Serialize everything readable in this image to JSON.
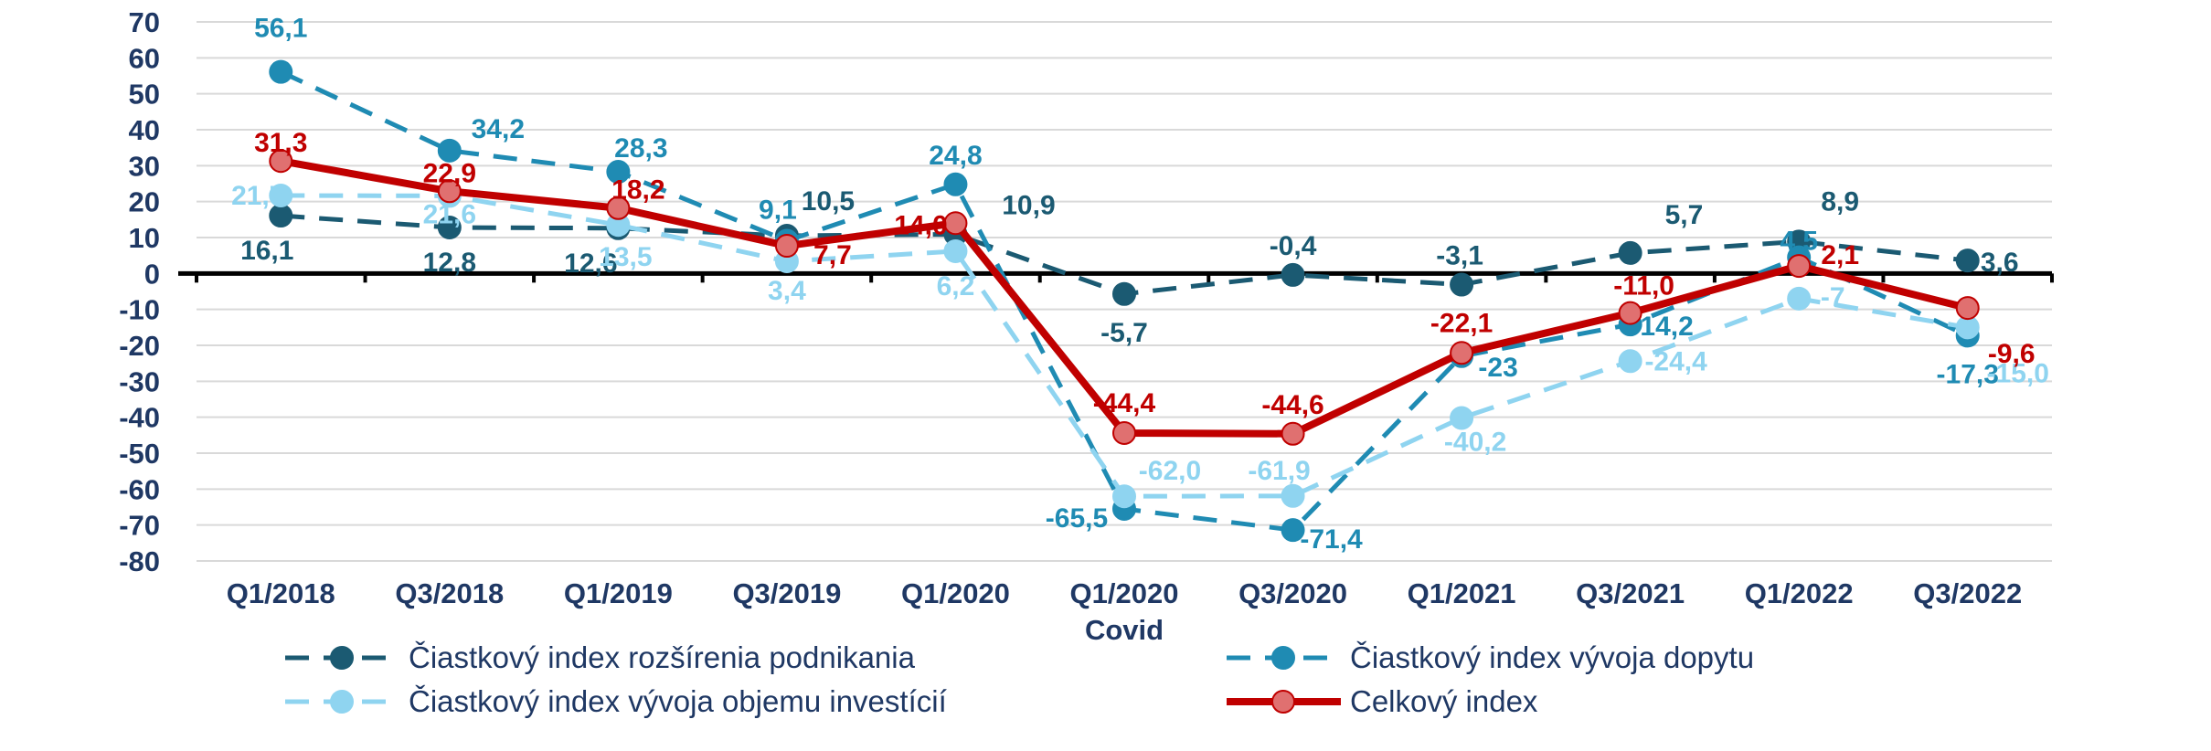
{
  "chart_data": {
    "type": "line",
    "title": "",
    "xlabel": "",
    "ylabel": "",
    "ylim": [
      -80,
      70
    ],
    "yticks": [
      70,
      60,
      50,
      40,
      30,
      20,
      10,
      0,
      -10,
      -20,
      -30,
      -40,
      -50,
      -60,
      -70,
      -80
    ],
    "grid": true,
    "legend_position": "bottom",
    "categories": [
      "Q1/2018",
      "Q3/2018",
      "Q1/2019",
      "Q3/2019",
      "Q1/2020",
      "Q1/2020",
      "Q3/2020",
      "Q1/2021",
      "Q3/2021",
      "Q1/2022",
      "Q3/2022"
    ],
    "category_sublabels": [
      "",
      "",
      "",
      "",
      "",
      "Covid",
      "",
      "",
      "",
      "",
      ""
    ],
    "series": [
      {
        "name": "Čiastkový index rozšírenia podnikania",
        "color": "#1b5a72",
        "style": "dashed",
        "values": [
          16.1,
          12.8,
          12.6,
          10.5,
          10.9,
          -5.7,
          -0.4,
          -3.1,
          5.7,
          8.9,
          3.6
        ],
        "labels": [
          "16,1",
          "12,8",
          "12,6",
          "10,5",
          "10,9",
          "-5,7",
          "-0,4",
          "-3,1",
          "5,7",
          "8,9",
          "3,6"
        ]
      },
      {
        "name": "Čiastkový index vývoja dopytu",
        "color": "#1f8bb3",
        "style": "dashed",
        "values": [
          56.1,
          34.2,
          28.3,
          9.1,
          24.8,
          -65.5,
          -71.4,
          -23,
          -14.2,
          4.5,
          -17.3
        ],
        "labels": [
          "56,1",
          "34,2",
          "28,3",
          "9,1",
          "24,8",
          "-65,5",
          "-71,4",
          "-23",
          "-14,2",
          "4,5",
          "-17,3"
        ]
      },
      {
        "name": "Čiastkový index vývoja objemu investícií",
        "color": "#8fd4f0",
        "style": "dashed",
        "values": [
          21.7,
          21.6,
          13.5,
          3.4,
          6.2,
          -62.0,
          -61.9,
          -40.2,
          -24.4,
          -7,
          -15.0
        ],
        "labels": [
          "21,7",
          "21,6",
          "13,5",
          "3,4",
          "6,2",
          "-62,0",
          "-61,9",
          "-40,2",
          "-24,4",
          "-7",
          "-15,0"
        ]
      },
      {
        "name": "Celkový index",
        "color": "#c00000",
        "style": "solid",
        "values": [
          31.3,
          22.9,
          18.2,
          7.7,
          14.0,
          -44.4,
          -44.6,
          -22.1,
          -11.0,
          2.1,
          -9.6
        ],
        "labels": [
          "31,3",
          "22,9",
          "18,2",
          "7,7",
          "14,0",
          "-44,4",
          "-44,6",
          "-22,1",
          "-11,0",
          "2,1",
          "-9,6"
        ]
      }
    ]
  }
}
